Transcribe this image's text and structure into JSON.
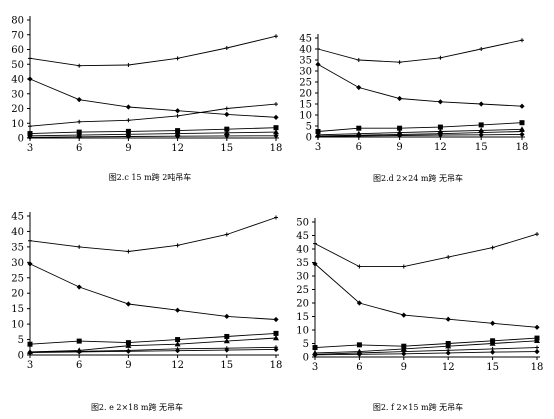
{
  "chart_data": [
    {
      "type": "line",
      "caption": "图2.c 15 m跨 2吨吊车",
      "x": [
        3,
        6,
        9,
        12,
        15,
        18
      ],
      "ylim": [
        0,
        80
      ],
      "yticks": [
        0,
        10,
        20,
        30,
        40,
        50,
        60,
        70,
        80
      ],
      "xticks": [
        3,
        6,
        9,
        12,
        15,
        18
      ],
      "series": [
        {
          "marker": "plus",
          "values": [
            54,
            49,
            49.5,
            54,
            61,
            69
          ]
        },
        {
          "marker": "diamond",
          "values": [
            40,
            26,
            21,
            18.5,
            16,
            14
          ]
        },
        {
          "marker": "plus",
          "values": [
            8,
            11,
            12,
            15,
            20,
            23
          ]
        },
        {
          "marker": "square",
          "values": [
            3,
            4,
            4.5,
            5,
            6,
            7
          ]
        },
        {
          "marker": "triangle",
          "values": [
            1.5,
            2,
            2.5,
            3,
            3.5,
            4
          ]
        },
        {
          "marker": "diamond",
          "values": [
            0.5,
            0.8,
            1,
            1.2,
            1.4,
            1.5
          ]
        }
      ]
    },
    {
      "type": "line",
      "caption": "图2.d 2×24 m跨 无吊车",
      "x": [
        3,
        6,
        9,
        12,
        15,
        18
      ],
      "ylim": [
        0,
        45
      ],
      "yticks": [
        0,
        5,
        10,
        15,
        20,
        25,
        30,
        35,
        40,
        45
      ],
      "xticks": [
        3,
        6,
        9,
        12,
        15,
        18
      ],
      "series": [
        {
          "marker": "plus",
          "values": [
            40,
            35,
            34,
            36,
            40,
            44
          ]
        },
        {
          "marker": "diamond",
          "values": [
            33,
            22.5,
            17.5,
            16,
            15,
            14
          ]
        },
        {
          "marker": "square",
          "values": [
            2.5,
            4,
            4,
            4.5,
            5.5,
            6.5
          ]
        },
        {
          "marker": "triangle",
          "values": [
            1,
            1.5,
            2,
            2.5,
            3,
            3.5
          ]
        },
        {
          "marker": "plus",
          "values": [
            0.5,
            0.8,
            1.2,
            1.5,
            2,
            2.5
          ]
        },
        {
          "marker": "diamond",
          "values": [
            0.3,
            0.5,
            0.7,
            0.9,
            1,
            1.2
          ]
        }
      ]
    },
    {
      "type": "line",
      "caption": "图2. e 2×18 m跨 无吊车",
      "x": [
        3,
        6,
        9,
        12,
        15,
        18
      ],
      "ylim": [
        0,
        45
      ],
      "yticks": [
        0,
        5,
        10,
        15,
        20,
        25,
        30,
        35,
        40,
        45
      ],
      "xticks": [
        3,
        6,
        9,
        12,
        15,
        18
      ],
      "series": [
        {
          "marker": "plus",
          "values": [
            37,
            35,
            33.5,
            35.5,
            39,
            44.5
          ]
        },
        {
          "marker": "diamond",
          "values": [
            29.5,
            22,
            16.5,
            14.5,
            12.5,
            11.5
          ]
        },
        {
          "marker": "square",
          "values": [
            3.5,
            4.5,
            4,
            5,
            6,
            7
          ]
        },
        {
          "marker": "triangle",
          "values": [
            1,
            1.5,
            3,
            3.5,
            4.5,
            5.5
          ]
        },
        {
          "marker": "plus",
          "values": [
            1,
            1.2,
            1.5,
            2,
            2.2,
            2.5
          ]
        },
        {
          "marker": "diamond",
          "values": [
            0.8,
            1,
            1.2,
            1.4,
            1.6,
            1.8
          ]
        }
      ]
    },
    {
      "type": "line",
      "caption": "图2. f 2×15 m跨 无吊车",
      "x": [
        3,
        6,
        9,
        12,
        15,
        18
      ],
      "ylim": [
        0,
        50
      ],
      "yticks": [
        0,
        5,
        10,
        15,
        20,
        25,
        30,
        35,
        40,
        45,
        50
      ],
      "xticks": [
        3,
        6,
        9,
        12,
        15,
        18
      ],
      "series": [
        {
          "marker": "plus",
          "values": [
            42,
            33.5,
            33.5,
            37,
            40.5,
            45.5
          ]
        },
        {
          "marker": "diamond",
          "values": [
            34.5,
            20,
            15.5,
            14,
            12.5,
            11
          ]
        },
        {
          "marker": "square",
          "values": [
            3.5,
            4.5,
            4,
            5,
            6,
            7
          ]
        },
        {
          "marker": "triangle",
          "values": [
            1.5,
            2,
            3,
            4,
            5,
            6
          ]
        },
        {
          "marker": "plus",
          "values": [
            1,
            1.5,
            2,
            2.5,
            3,
            3.5
          ]
        },
        {
          "marker": "diamond",
          "values": [
            0.8,
            1,
            1.2,
            1.5,
            1.8,
            2
          ]
        }
      ]
    }
  ]
}
